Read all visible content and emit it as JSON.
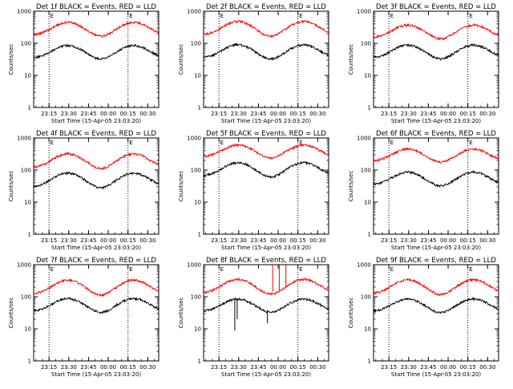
{
  "colors": {
    "events": "#000000",
    "lld": "#ff0000",
    "axis": "#000000",
    "background": "#ffffff"
  },
  "chart_data": [
    {
      "type": "line",
      "title": "Det 1f BLACK = Events, RED = LLD",
      "ylabel": "Counts/sec",
      "xlabel": "Start Time (15-Apr-05 23:03:20)",
      "xtick_labels": [
        "23:15",
        "23:30",
        "23:45",
        "00:00",
        "00:15",
        "00:30"
      ],
      "ytick_labels": [
        "1",
        "10",
        "100",
        "1000"
      ],
      "y_scale": "log",
      "ylim": [
        1,
        1000
      ],
      "marker_label": "E",
      "series": [
        {
          "color": "red",
          "baseline": 180,
          "peaks": [
            450,
            450
          ]
        },
        {
          "color": "black",
          "baseline": 35,
          "peaks": [
            85,
            85
          ]
        }
      ],
      "spikes": []
    },
    {
      "type": "line",
      "title": "Det 2f BLACK = Events, RED = LLD",
      "ylabel": "Counts/sec",
      "xlabel": "Start Time (15-Apr-05 23:03:20)",
      "xtick_labels": [
        "23:15",
        "23:30",
        "23:45",
        "00:00",
        "00:15",
        "00:30"
      ],
      "ytick_labels": [
        "1",
        "10",
        "100",
        "1000"
      ],
      "y_scale": "log",
      "ylim": [
        1,
        1000
      ],
      "marker_label": "E",
      "series": [
        {
          "color": "red",
          "baseline": 180,
          "peaks": [
            480,
            480
          ]
        },
        {
          "color": "black",
          "baseline": 35,
          "peaks": [
            90,
            90
          ]
        }
      ],
      "spikes": []
    },
    {
      "type": "line",
      "title": "Det 3f BLACK = Events, RED = LLD",
      "ylabel": "Counts/sec",
      "xlabel": "Start Time (15-Apr-05 23:03:20)",
      "xtick_labels": [
        "23:15",
        "23:30",
        "23:45",
        "00:00",
        "00:15",
        "00:30"
      ],
      "ytick_labels": [
        "1",
        "10",
        "100",
        "1000"
      ],
      "y_scale": "log",
      "ylim": [
        1,
        1000
      ],
      "marker_label": "E",
      "series": [
        {
          "color": "red",
          "baseline": 150,
          "peaks": [
            370,
            370
          ]
        },
        {
          "color": "black",
          "baseline": 35,
          "peaks": [
            88,
            88
          ]
        }
      ],
      "spikes": []
    },
    {
      "type": "line",
      "title": "Det 4f BLACK = Events, RED = LLD",
      "ylabel": "Counts/sec",
      "xlabel": "Start Time (15-Apr-05 23:03:20)",
      "xtick_labels": [
        "23:15",
        "23:30",
        "23:45",
        "00:00",
        "00:15",
        "00:30"
      ],
      "ytick_labels": [
        "1",
        "10",
        "100",
        "1000"
      ],
      "y_scale": "log",
      "ylim": [
        1,
        1000
      ],
      "marker_label": "E",
      "series": [
        {
          "color": "red",
          "baseline": 120,
          "peaks": [
            320,
            320
          ]
        },
        {
          "color": "black",
          "baseline": 30,
          "peaks": [
            80,
            80
          ]
        }
      ],
      "spikes": []
    },
    {
      "type": "line",
      "title": "Det 5f BLACK = Events, RED = LLD",
      "ylabel": "Counts/sec",
      "xlabel": "Start Time (15-Apr-05 23:03:20)",
      "xtick_labels": [
        "23:15",
        "23:30",
        "23:45",
        "00:00",
        "00:15",
        "00:30"
      ],
      "ytick_labels": [
        "1",
        "10",
        "100",
        "1000"
      ],
      "y_scale": "log",
      "ylim": [
        1,
        1000
      ],
      "marker_label": "E",
      "series": [
        {
          "color": "red",
          "baseline": 260,
          "peaks": [
            600,
            600
          ]
        },
        {
          "color": "black",
          "baseline": 65,
          "peaks": [
            170,
            170
          ]
        }
      ],
      "spikes": []
    },
    {
      "type": "line",
      "title": "Det 6f BLACK = Events, RED = LLD",
      "ylabel": "Counts/sec",
      "xlabel": "Start Time (15-Apr-05 23:03:20)",
      "xtick_labels": [
        "23:15",
        "23:30",
        "23:45",
        "00:00",
        "00:15",
        "00:30"
      ],
      "ytick_labels": [
        "1",
        "10",
        "100",
        "1000"
      ],
      "y_scale": "log",
      "ylim": [
        1,
        1000
      ],
      "marker_label": "E",
      "series": [
        {
          "color": "red",
          "baseline": 190,
          "peaks": [
            450,
            450
          ]
        },
        {
          "color": "black",
          "baseline": 35,
          "peaks": [
            85,
            85
          ]
        }
      ],
      "spikes": []
    },
    {
      "type": "line",
      "title": "Det 7f BLACK = Events, RED = LLD",
      "ylabel": "Counts/sec",
      "xlabel": "Start Time (15-Apr-05 23:03:20)",
      "xtick_labels": [
        "23:15",
        "23:30",
        "23:45",
        "00:00",
        "00:15",
        "00:30"
      ],
      "ytick_labels": [
        "1",
        "10",
        "100",
        "1000"
      ],
      "y_scale": "log",
      "ylim": [
        1,
        1000
      ],
      "marker_label": "E",
      "series": [
        {
          "color": "red",
          "baseline": 120,
          "peaks": [
            330,
            330
          ]
        },
        {
          "color": "black",
          "baseline": 35,
          "peaks": [
            88,
            88
          ]
        }
      ],
      "spikes": []
    },
    {
      "type": "line",
      "title": "Det 8f BLACK = Events, RED = LLD",
      "ylabel": "Counts/sec",
      "xlabel": "Start Time (15-Apr-05 23:03:20)",
      "xtick_labels": [
        "23:15",
        "23:30",
        "23:45",
        "00:00",
        "00:15",
        "00:30"
      ],
      "ytick_labels": [
        "1",
        "10",
        "100",
        "1000"
      ],
      "y_scale": "log",
      "ylim": [
        1,
        1000
      ],
      "marker_label": "E",
      "series": [
        {
          "color": "red",
          "baseline": 130,
          "peaks": [
            350,
            350
          ]
        },
        {
          "color": "black",
          "baseline": 35,
          "peaks": [
            85,
            85
          ]
        }
      ],
      "spikes": [
        {
          "color": "black",
          "t_min": 23.7,
          "value": 9
        },
        {
          "color": "black",
          "t_min": 25.5,
          "value": 20
        },
        {
          "color": "black",
          "t_min": 48.5,
          "value": 15
        },
        {
          "color": "red",
          "t_min": 52.5,
          "value": 1000
        },
        {
          "color": "red",
          "t_min": 57.5,
          "value": 1000
        },
        {
          "color": "red",
          "t_min": 62.5,
          "value": 1000
        }
      ]
    },
    {
      "type": "line",
      "title": "Det 9f BLACK = Events, RED = LLD",
      "ylabel": "Counts/sec",
      "xlabel": "Start Time (15-Apr-05 23:03:20)",
      "xtick_labels": [
        "23:15",
        "23:30",
        "23:45",
        "00:00",
        "00:15",
        "00:30"
      ],
      "ytick_labels": [
        "1",
        "10",
        "100",
        "1000"
      ],
      "y_scale": "log",
      "ylim": [
        1,
        1000
      ],
      "marker_label": "E",
      "series": [
        {
          "color": "red",
          "baseline": 125,
          "peaks": [
            340,
            340
          ]
        },
        {
          "color": "black",
          "baseline": 35,
          "peaks": [
            85,
            85
          ]
        }
      ],
      "spikes": []
    }
  ]
}
